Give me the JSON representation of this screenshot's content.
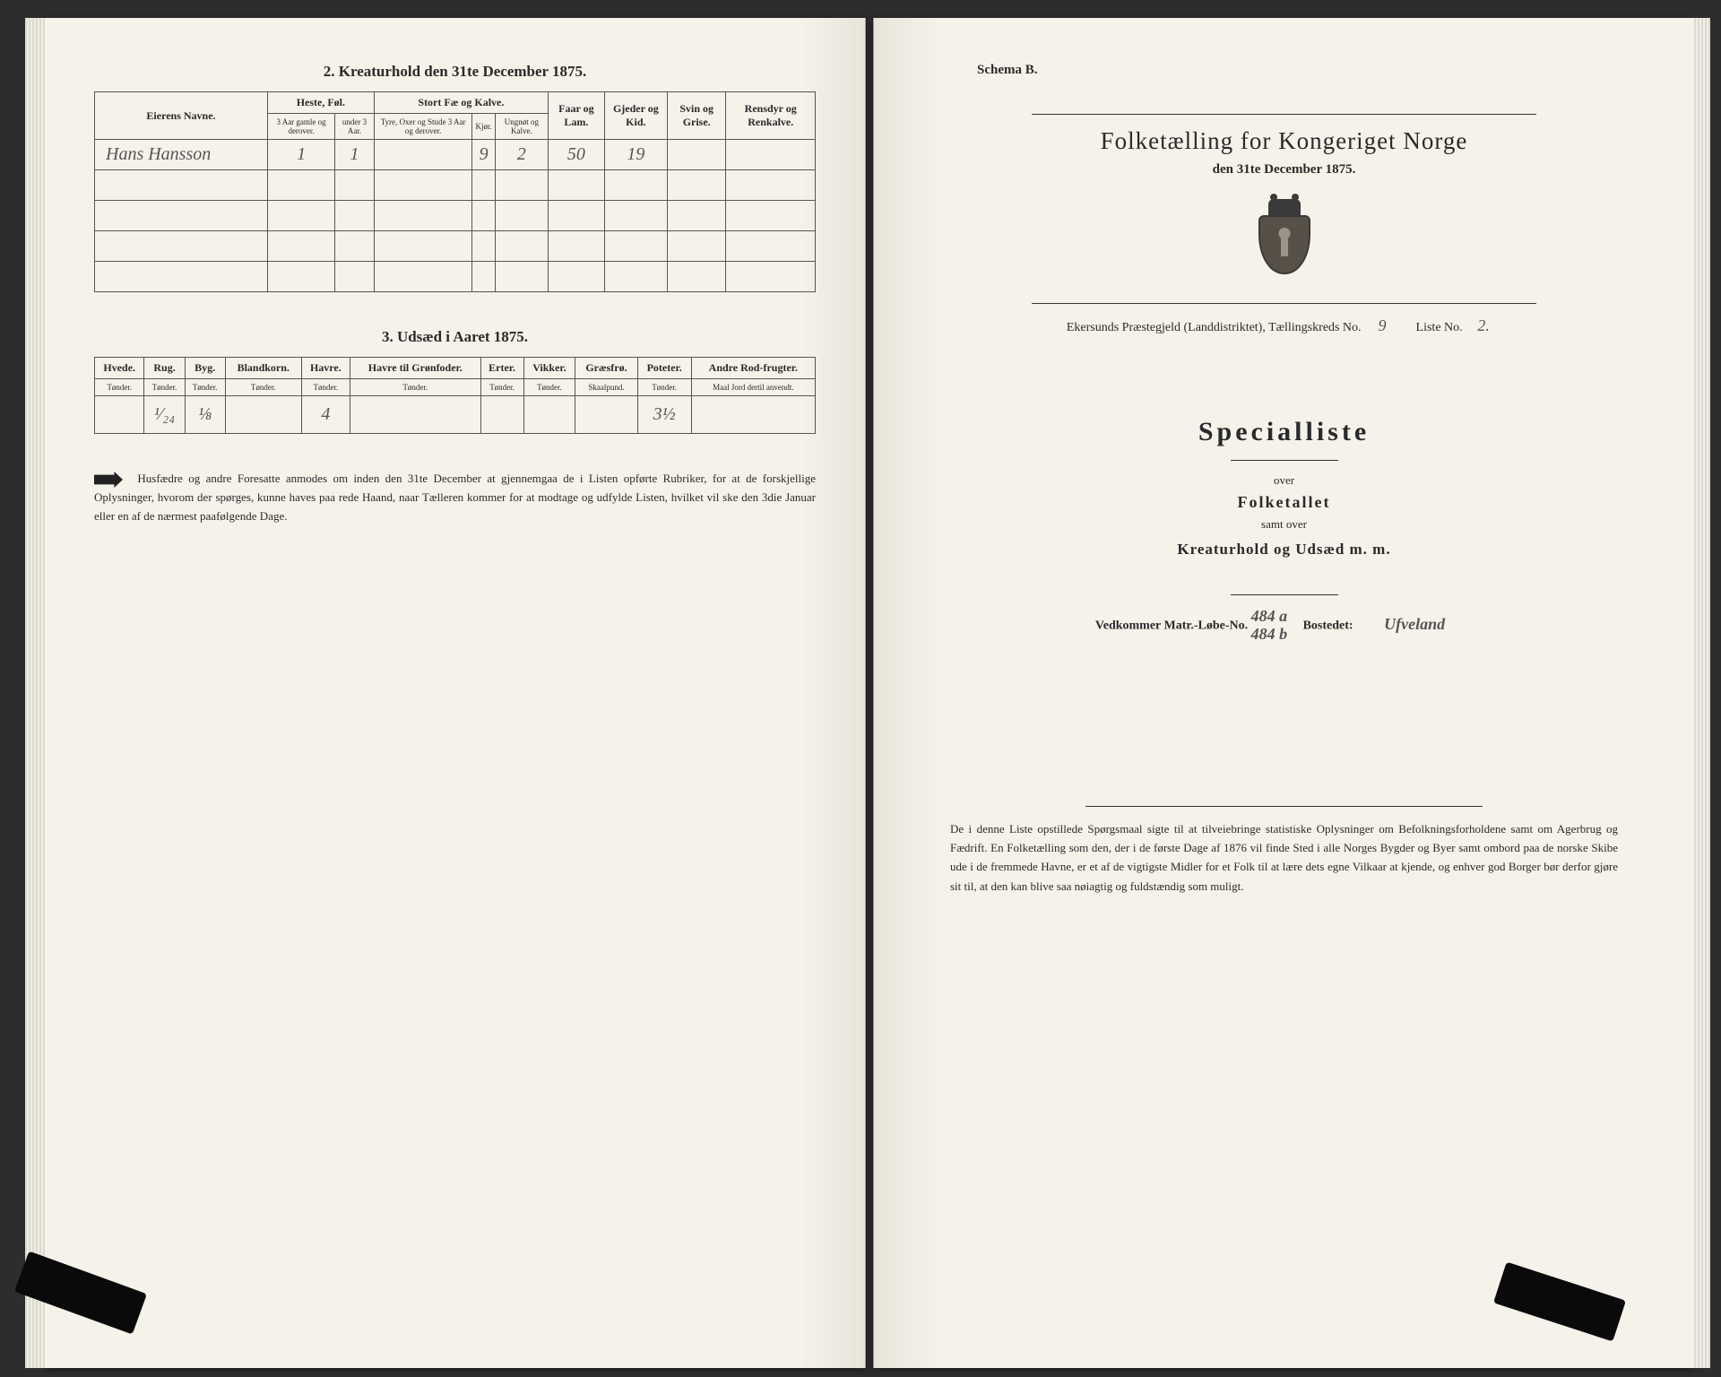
{
  "left": {
    "section2_title": "2.  Kreaturhold den 31te December 1875.",
    "table2": {
      "col_group_labels": [
        "",
        "Heste, Føl.",
        "Stort Fæ og Kalve.",
        "Faar og Lam.",
        "Gjeder og Kid.",
        "Svin og Grise.",
        "Rensdyr og Renkalve."
      ],
      "headers": [
        "Eierens Navne.",
        "3 Aar gamle og derover.",
        "under 3 Aar.",
        "Tyre, Oxer og Stude 3 Aar og derover.",
        "Kjør.",
        "Ungnøt og Kalve.",
        "",
        "",
        "",
        ""
      ],
      "rows": [
        [
          "Hans  Hansson",
          "1",
          "1",
          "",
          "9",
          "2",
          "50",
          "19",
          "",
          ""
        ],
        [
          "",
          "",
          "",
          "",
          "",
          "",
          "",
          "",
          "",
          ""
        ],
        [
          "",
          "",
          "",
          "",
          "",
          "",
          "",
          "",
          "",
          ""
        ],
        [
          "",
          "",
          "",
          "",
          "",
          "",
          "",
          "",
          "",
          ""
        ],
        [
          "",
          "",
          "",
          "",
          "",
          "",
          "",
          "",
          "",
          ""
        ]
      ]
    },
    "section3_title": "3.  Udsæd i Aaret 1875.",
    "table3": {
      "headers": [
        "Hvede.",
        "Rug.",
        "Byg.",
        "Blandkorn.",
        "Havre.",
        "Havre til Grønfoder.",
        "Erter.",
        "Vikker.",
        "Græsfrø.",
        "Poteter.",
        "Andre Rod-frugter."
      ],
      "units": [
        "Tønder.",
        "Tønder.",
        "Tønder.",
        "Tønder.",
        "Tønder.",
        "Tønder.",
        "Tønder.",
        "Tønder.",
        "Skaalpund.",
        "Tønder.",
        "Maal Jord dertil anvendt."
      ],
      "rows": [
        [
          "",
          "¹⁄₂₄",
          "⅛",
          "",
          "4",
          "",
          "",
          "",
          "",
          "3½",
          ""
        ]
      ]
    },
    "footnote": "Husfædre og andre Foresatte anmodes om inden den 31te December at gjennemgaa de i Listen opførte Rubriker, for at de forskjellige Oplysninger, hvorom der spørges, kunne haves paa rede Haand, naar Tælleren kommer for at modtage og udfylde Listen, hvilket vil ske den 3die Januar eller en af de nærmest paafølgende Dage."
  },
  "right": {
    "schema": "Schema B.",
    "census_title": "Folketælling for Kongeriget Norge",
    "census_date": "den 31te December 1875.",
    "district_prefix": "Ekersunds Præstegjeld (Landdistriktet), Tællingskreds No.",
    "kreds_no": "9",
    "liste_label": "Liste No.",
    "liste_no": "2.",
    "special_title": "Specialliste",
    "over": "over",
    "folketallet": "Folketallet",
    "samt_over": "samt over",
    "kreatur_line": "Kreaturhold og Udsæd m. m.",
    "matr_label": "Vedkommer Matr.-Løbe-No.",
    "matr_no": "484 a\n484 b",
    "bosted_label": "Bostedet:",
    "bosted": "Ufveland",
    "bottom_note": "De i denne Liste opstillede Spørgsmaal sigte til at tilveiebringe statistiske Oplysninger om Befolkningsforholdene samt om Agerbrug og Fædrift.  En Folketælling som den, der i de første Dage af 1876 vil finde Sted i alle Norges Bygder og Byer samt ombord paa de norske Skibe ude i de fremmede Havne, er et af de vigtigste Midler for et Folk til at lære dets egne Vilkaar at kjende, og enhver god Borger bør derfor gjøre sit til, at den kan blive saa nøiagtig og fuldstændig som muligt."
  },
  "colors": {
    "paper": "#f5f2ea",
    "ink": "#2a2a2a",
    "handwriting": "#555555",
    "table_border": "#555555",
    "background": "#2d2d2d"
  }
}
